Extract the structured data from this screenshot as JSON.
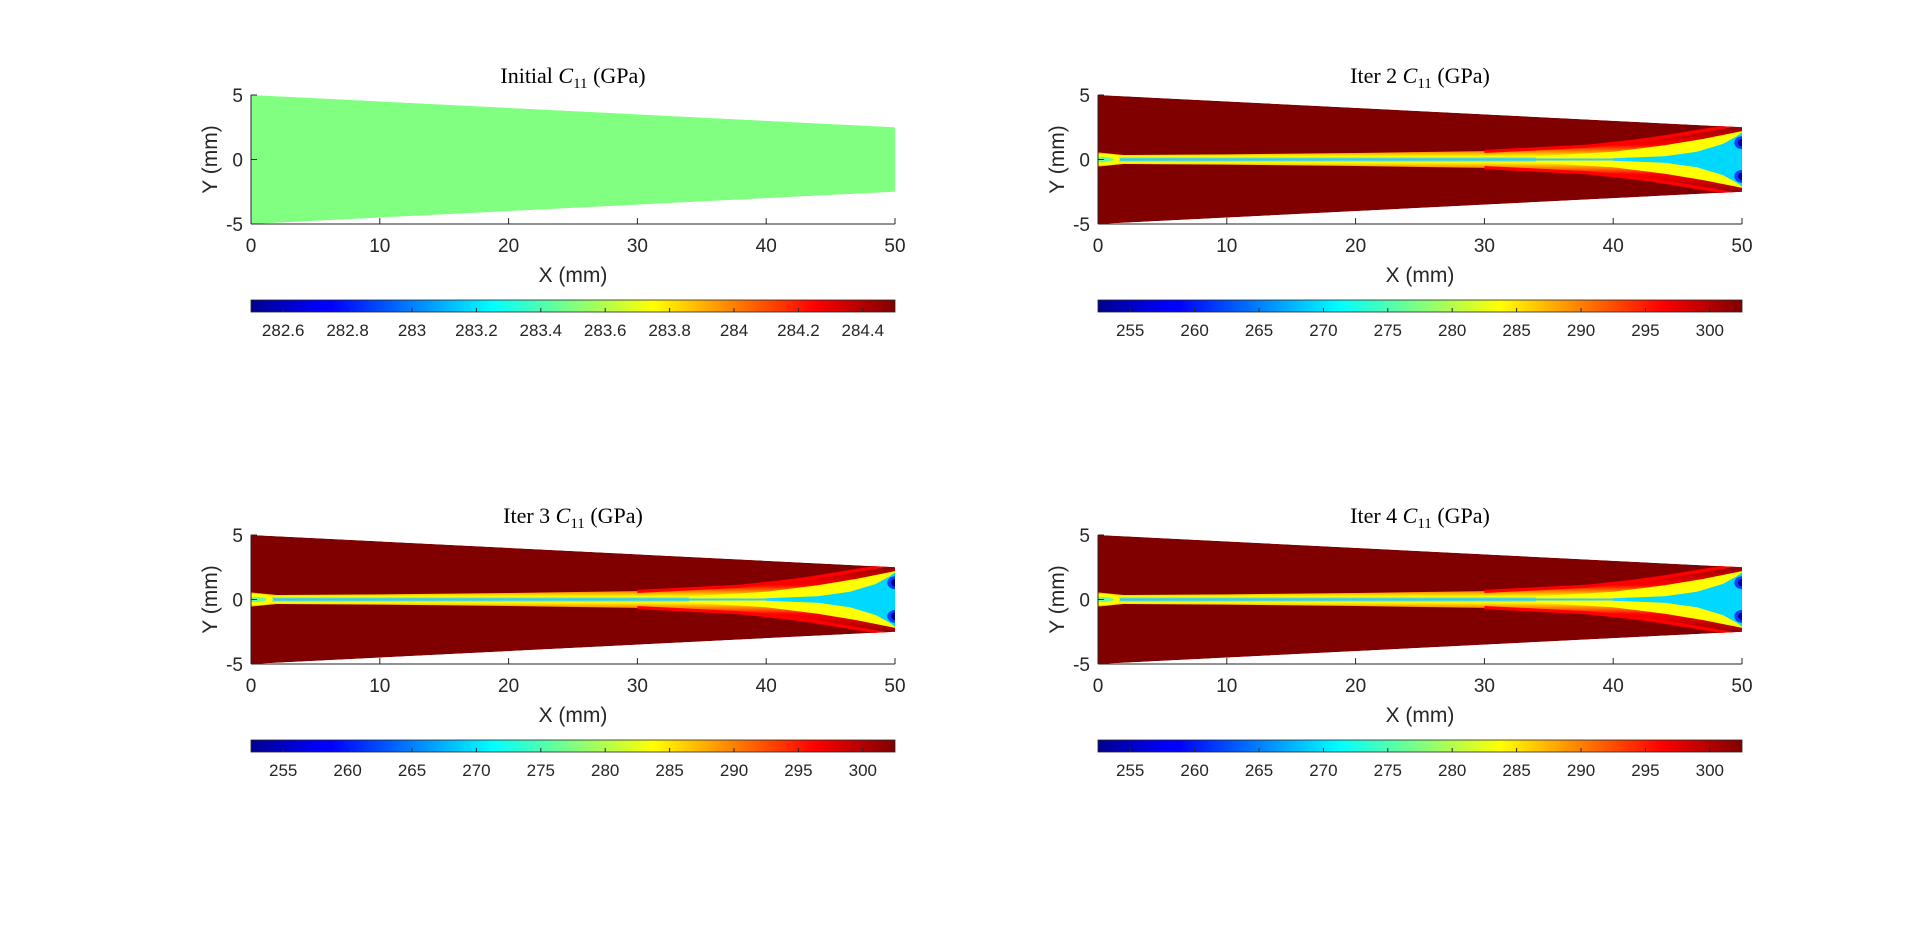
{
  "chart_data": [
    {
      "type": "heatmap",
      "title_prefix": "Initial",
      "title_symbol": "C",
      "title_subscript": "11",
      "title_suffix": "(GPa)",
      "xlabel": "X (mm)",
      "ylabel": "Y (mm)",
      "xlim": [
        0,
        50
      ],
      "ylim": [
        -5,
        5
      ],
      "xticks": [
        "0",
        "10",
        "20",
        "30",
        "40",
        "50"
      ],
      "yticks": [
        "5",
        "0",
        "-5"
      ],
      "domain_outline": {
        "x": [
          0,
          50
        ],
        "half_width_at_x0": 5,
        "half_width_at_x50": 2.5
      },
      "field": "uniform",
      "colorbar": {
        "range": [
          282.5,
          284.5
        ],
        "ticks": [
          "282.6",
          "282.8",
          "283",
          "283.2",
          "283.4",
          "283.6",
          "283.8",
          "284",
          "284.2",
          "284.4"
        ],
        "tick_values": [
          282.6,
          282.8,
          283.0,
          283.2,
          283.4,
          283.6,
          283.8,
          284.0,
          284.2,
          284.4
        ]
      },
      "uniform_color": "#80ff80"
    },
    {
      "type": "heatmap",
      "title_prefix": "Iter 2",
      "title_symbol": "C",
      "title_subscript": "11",
      "title_suffix": "(GPa)",
      "xlabel": "X (mm)",
      "ylabel": "Y (mm)",
      "xlim": [
        0,
        50
      ],
      "ylim": [
        -5,
        5
      ],
      "xticks": [
        "0",
        "10",
        "20",
        "30",
        "40",
        "50"
      ],
      "yticks": [
        "5",
        "0",
        "-5"
      ],
      "domain_outline": {
        "x": [
          0,
          50
        ],
        "half_width_at_x0": 5,
        "half_width_at_x50": 2.5
      },
      "field": "crack",
      "colorbar": {
        "range": [
          252.5,
          302.5
        ],
        "ticks": [
          "255",
          "260",
          "265",
          "270",
          "275",
          "280",
          "285",
          "290",
          "295",
          "300"
        ],
        "tick_values": [
          255,
          260,
          265,
          270,
          275,
          280,
          285,
          290,
          295,
          300
        ]
      }
    },
    {
      "type": "heatmap",
      "title_prefix": "Iter 3",
      "title_symbol": "C",
      "title_subscript": "11",
      "title_suffix": "(GPa)",
      "xlabel": "X (mm)",
      "ylabel": "Y (mm)",
      "xlim": [
        0,
        50
      ],
      "ylim": [
        -5,
        5
      ],
      "xticks": [
        "0",
        "10",
        "20",
        "30",
        "40",
        "50"
      ],
      "yticks": [
        "5",
        "0",
        "-5"
      ],
      "domain_outline": {
        "x": [
          0,
          50
        ],
        "half_width_at_x0": 5,
        "half_width_at_x50": 2.5
      },
      "field": "crack",
      "colorbar": {
        "range": [
          252.5,
          302.5
        ],
        "ticks": [
          "255",
          "260",
          "265",
          "270",
          "275",
          "280",
          "285",
          "290",
          "295",
          "300"
        ],
        "tick_values": [
          255,
          260,
          265,
          270,
          275,
          280,
          285,
          290,
          295,
          300
        ]
      }
    },
    {
      "type": "heatmap",
      "title_prefix": "Iter 4",
      "title_symbol": "C",
      "title_subscript": "11",
      "title_suffix": "(GPa)",
      "xlabel": "X (mm)",
      "ylabel": "Y (mm)",
      "xlim": [
        0,
        50
      ],
      "ylim": [
        -5,
        5
      ],
      "xticks": [
        "0",
        "10",
        "20",
        "30",
        "40",
        "50"
      ],
      "yticks": [
        "5",
        "0",
        "-5"
      ],
      "domain_outline": {
        "x": [
          0,
          50
        ],
        "half_width_at_x0": 5,
        "half_width_at_x50": 2.5
      },
      "field": "crack",
      "colorbar": {
        "range": [
          252.5,
          302.5
        ],
        "ticks": [
          "255",
          "260",
          "265",
          "270",
          "275",
          "280",
          "285",
          "290",
          "295",
          "300"
        ],
        "tick_values": [
          255,
          260,
          265,
          270,
          275,
          280,
          285,
          290,
          295,
          300
        ]
      }
    }
  ],
  "colormap": "jet",
  "colors": {
    "background": "#ffffff",
    "axis": "#262626",
    "dark_red": "#800000",
    "red": "#ff0000",
    "orange": "#ff9900",
    "yellow": "#ffff00",
    "cyan_light": "#33ccff",
    "cyan": "#00d8ff",
    "blue": "#0040ff",
    "dark_blue": "#000099"
  }
}
